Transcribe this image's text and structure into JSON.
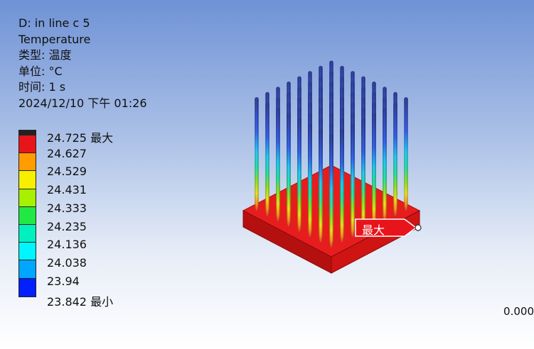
{
  "result": {
    "name": "D: in line c 5",
    "quantity": "Temperature",
    "type_line": "类型: 温度",
    "unit_line": "单位: °C",
    "time_line": "时间: 1 s",
    "date_line": "2024/12/10 下午 01:26"
  },
  "legend": {
    "levels": [
      {
        "label": "24.725 最大",
        "color": "#222222"
      },
      {
        "label": "24.627",
        "color": "#e8141b"
      },
      {
        "label": "24.529",
        "color": "#ff9d00"
      },
      {
        "label": "24.431",
        "color": "#f7ee00"
      },
      {
        "label": "24.333",
        "color": "#a6f000"
      },
      {
        "label": "24.235",
        "color": "#22e845"
      },
      {
        "label": "24.136",
        "color": "#00f0c0"
      },
      {
        "label": "24.038",
        "color": "#00f6ff"
      },
      {
        "label": "23.94",
        "color": "#00a6ff"
      },
      {
        "label": "23.842 最小",
        "color": "#0020ff"
      }
    ]
  },
  "probe": {
    "label": "最大"
  },
  "scale_label": "0.000"
}
